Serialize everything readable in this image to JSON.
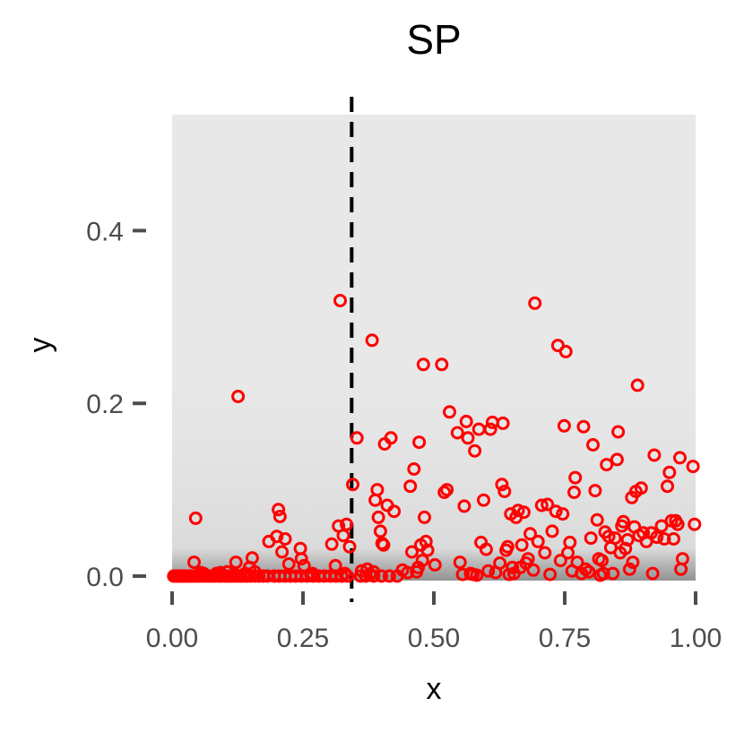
{
  "chart_data": {
    "type": "scatter",
    "title": "SP",
    "xlabel": "x",
    "ylabel": "y",
    "xlim": [
      0,
      1
    ],
    "ylim": [
      0,
      0.54
    ],
    "x_ticks": [
      0,
      0.25,
      0.5,
      0.75,
      1
    ],
    "x_tick_labels": [
      "0.00",
      "0.25",
      "0.50",
      "0.75",
      "1.00"
    ],
    "y_ticks": [
      0,
      0.2,
      0.4
    ],
    "y_tick_labels": [
      "0.0",
      "0.2",
      "0.4"
    ],
    "vline_x": 0.343,
    "grid": false,
    "colors": {
      "points": "#ff0000",
      "panel": "#e8e8e8",
      "band": "#9a9a9a",
      "vline": "#000000",
      "ticks": "#4d4d4d"
    },
    "points": [
      [
        0.003,
        0
      ],
      [
        0.008,
        0
      ],
      [
        0.011,
        0
      ],
      [
        0.014,
        0
      ],
      [
        0.016,
        0
      ],
      [
        0.019,
        0
      ],
      [
        0.022,
        0
      ],
      [
        0.024,
        0
      ],
      [
        0.027,
        0
      ],
      [
        0.03,
        0
      ],
      [
        0.034,
        0
      ],
      [
        0.038,
        0
      ],
      [
        0.042,
        0
      ],
      [
        0.047,
        0
      ],
      [
        0.052,
        0
      ],
      [
        0.058,
        0
      ],
      [
        0.064,
        0
      ],
      [
        0.07,
        0
      ],
      [
        0.076,
        0
      ],
      [
        0.082,
        0
      ],
      [
        0.089,
        0
      ],
      [
        0.095,
        0
      ],
      [
        0.101,
        0
      ],
      [
        0.107,
        0
      ],
      [
        0.113,
        0
      ],
      [
        0.119,
        0
      ],
      [
        0.125,
        0
      ],
      [
        0.131,
        0
      ],
      [
        0.137,
        0
      ],
      [
        0.143,
        0
      ],
      [
        0.15,
        0
      ],
      [
        0.158,
        0
      ],
      [
        0.166,
        0
      ],
      [
        0.174,
        0
      ],
      [
        0.182,
        0
      ],
      [
        0.195,
        0
      ],
      [
        0.205,
        0
      ],
      [
        0.215,
        0
      ],
      [
        0.226,
        0
      ],
      [
        0.236,
        0
      ],
      [
        0.247,
        0
      ],
      [
        0.258,
        0
      ],
      [
        0.269,
        0
      ],
      [
        0.28,
        0
      ],
      [
        0.291,
        0
      ],
      [
        0.302,
        0
      ],
      [
        0.313,
        0
      ],
      [
        0.324,
        0
      ],
      [
        0.335,
        0
      ],
      [
        0.36,
        0
      ],
      [
        0.37,
        0
      ],
      [
        0.385,
        0
      ],
      [
        0.4,
        0
      ],
      [
        0.415,
        0
      ],
      [
        0.43,
        0
      ],
      [
        0.06,
        0.003
      ],
      [
        0.12,
        0.002
      ],
      [
        0.265,
        0.002
      ],
      [
        0.33,
        0.003
      ],
      [
        0.042,
        0.016
      ],
      [
        0.045,
        0.067
      ],
      [
        0.055,
        0.004
      ],
      [
        0.085,
        0.003
      ],
      [
        0.092,
        0.004
      ],
      [
        0.105,
        0.005
      ],
      [
        0.122,
        0.016
      ],
      [
        0.126,
        0.208
      ],
      [
        0.14,
        0.003
      ],
      [
        0.148,
        0.01
      ],
      [
        0.153,
        0.021
      ],
      [
        0.158,
        0.005
      ],
      [
        0.185,
        0.04
      ],
      [
        0.2,
        0.046
      ],
      [
        0.203,
        0.077
      ],
      [
        0.206,
        0.069
      ],
      [
        0.21,
        0.028
      ],
      [
        0.216,
        0.043
      ],
      [
        0.223,
        0.014
      ],
      [
        0.245,
        0.032
      ],
      [
        0.247,
        0.02
      ],
      [
        0.252,
        0.012
      ],
      [
        0.268,
        0.003
      ],
      [
        0.305,
        0.037
      ],
      [
        0.312,
        0.012
      ],
      [
        0.318,
        0.058
      ],
      [
        0.321,
        0.319
      ],
      [
        0.327,
        0.047
      ],
      [
        0.333,
        0.06
      ],
      [
        0.339,
        0.034
      ],
      [
        0.345,
        0.106
      ],
      [
        0.353,
        0.16
      ],
      [
        0.362,
        0.006
      ],
      [
        0.373,
        0.008
      ],
      [
        0.378,
        0.002
      ],
      [
        0.382,
        0.273
      ],
      [
        0.385,
        0.005
      ],
      [
        0.388,
        0.088
      ],
      [
        0.392,
        0.1
      ],
      [
        0.394,
        0.068
      ],
      [
        0.398,
        0.052
      ],
      [
        0.401,
        0.038
      ],
      [
        0.404,
        0.036
      ],
      [
        0.406,
        0.153
      ],
      [
        0.411,
        0.082
      ],
      [
        0.418,
        0.16
      ],
      [
        0.424,
        0.075
      ],
      [
        0.44,
        0.007
      ],
      [
        0.45,
        0.004
      ],
      [
        0.455,
        0.104
      ],
      [
        0.458,
        0.028
      ],
      [
        0.462,
        0.124
      ],
      [
        0.467,
        0.005
      ],
      [
        0.47,
        0.01
      ],
      [
        0.472,
        0.155
      ],
      [
        0.475,
        0.036
      ],
      [
        0.478,
        0.018
      ],
      [
        0.48,
        0.245
      ],
      [
        0.482,
        0.068
      ],
      [
        0.485,
        0.04
      ],
      [
        0.488,
        0.03
      ],
      [
        0.502,
        0.013
      ],
      [
        0.515,
        0.245
      ],
      [
        0.52,
        0.097
      ],
      [
        0.525,
        0.1
      ],
      [
        0.53,
        0.19
      ],
      [
        0.545,
        0.166
      ],
      [
        0.55,
        0.016
      ],
      [
        0.555,
        0.002
      ],
      [
        0.558,
        0.081
      ],
      [
        0.562,
        0.179
      ],
      [
        0.565,
        0.16
      ],
      [
        0.57,
        0.003
      ],
      [
        0.575,
        0.002
      ],
      [
        0.578,
        0.145
      ],
      [
        0.582,
        0.001
      ],
      [
        0.586,
        0.17
      ],
      [
        0.59,
        0.039
      ],
      [
        0.595,
        0.088
      ],
      [
        0.6,
        0.031
      ],
      [
        0.604,
        0.006
      ],
      [
        0.608,
        0.17
      ],
      [
        0.612,
        0.178
      ],
      [
        0.618,
        0.004
      ],
      [
        0.626,
        0.015
      ],
      [
        0.63,
        0.106
      ],
      [
        0.632,
        0.177
      ],
      [
        0.635,
        0.098
      ],
      [
        0.638,
        0.03
      ],
      [
        0.641,
        0.034
      ],
      [
        0.644,
        0.002
      ],
      [
        0.647,
        0.072
      ],
      [
        0.65,
        0.01
      ],
      [
        0.653,
        0.003
      ],
      [
        0.657,
        0.068
      ],
      [
        0.661,
        0.076
      ],
      [
        0.665,
        0.01
      ],
      [
        0.668,
        0.036
      ],
      [
        0.672,
        0.074
      ],
      [
        0.676,
        0.015
      ],
      [
        0.68,
        0.02
      ],
      [
        0.684,
        0.049
      ],
      [
        0.69,
        0.007
      ],
      [
        0.693,
        0.316
      ],
      [
        0.699,
        0.04
      ],
      [
        0.706,
        0.082
      ],
      [
        0.712,
        0.027
      ],
      [
        0.717,
        0.083
      ],
      [
        0.722,
        0.002
      ],
      [
        0.726,
        0.052
      ],
      [
        0.733,
        0.075
      ],
      [
        0.737,
        0.267
      ],
      [
        0.742,
        0.018
      ],
      [
        0.746,
        0.072
      ],
      [
        0.749,
        0.174
      ],
      [
        0.752,
        0.26
      ],
      [
        0.756,
        0.027
      ],
      [
        0.76,
        0.039
      ],
      [
        0.764,
        0.006
      ],
      [
        0.768,
        0.097
      ],
      [
        0.77,
        0.114
      ],
      [
        0.774,
        0.016
      ],
      [
        0.782,
        0.003
      ],
      [
        0.786,
        0.173
      ],
      [
        0.79,
        0.008
      ],
      [
        0.796,
        0.005
      ],
      [
        0.8,
        0.044
      ],
      [
        0.804,
        0.152
      ],
      [
        0.808,
        0.099
      ],
      [
        0.812,
        0.065
      ],
      [
        0.815,
        0.02
      ],
      [
        0.818,
        0.001
      ],
      [
        0.821,
        0.018
      ],
      [
        0.824,
        0.003
      ],
      [
        0.827,
        0.051
      ],
      [
        0.83,
        0.129
      ],
      [
        0.834,
        0.046
      ],
      [
        0.838,
        0.033
      ],
      [
        0.842,
        0.003
      ],
      [
        0.846,
        0.044
      ],
      [
        0.85,
        0.135
      ],
      [
        0.852,
        0.167
      ],
      [
        0.856,
        0.027
      ],
      [
        0.859,
        0.058
      ],
      [
        0.862,
        0.063
      ],
      [
        0.866,
        0.032
      ],
      [
        0.87,
        0.042
      ],
      [
        0.874,
        0.008
      ],
      [
        0.878,
        0.091
      ],
      [
        0.88,
        0.016
      ],
      [
        0.883,
        0.057
      ],
      [
        0.886,
        0.098
      ],
      [
        0.889,
        0.221
      ],
      [
        0.892,
        0.047
      ],
      [
        0.896,
        0.102
      ],
      [
        0.9,
        0.05
      ],
      [
        0.906,
        0.04
      ],
      [
        0.915,
        0.05
      ],
      [
        0.918,
        0.003
      ],
      [
        0.921,
        0.14
      ],
      [
        0.926,
        0.045
      ],
      [
        0.935,
        0.058
      ],
      [
        0.94,
        0.043
      ],
      [
        0.946,
        0.104
      ],
      [
        0.95,
        0.12
      ],
      [
        0.954,
        0.064
      ],
      [
        0.958,
        0.043
      ],
      [
        0.962,
        0.064
      ],
      [
        0.966,
        0.06
      ],
      [
        0.97,
        0.137
      ],
      [
        0.972,
        0.008
      ],
      [
        0.975,
        0.02
      ],
      [
        0.995,
        0.127
      ],
      [
        0.998,
        0.06
      ]
    ]
  }
}
